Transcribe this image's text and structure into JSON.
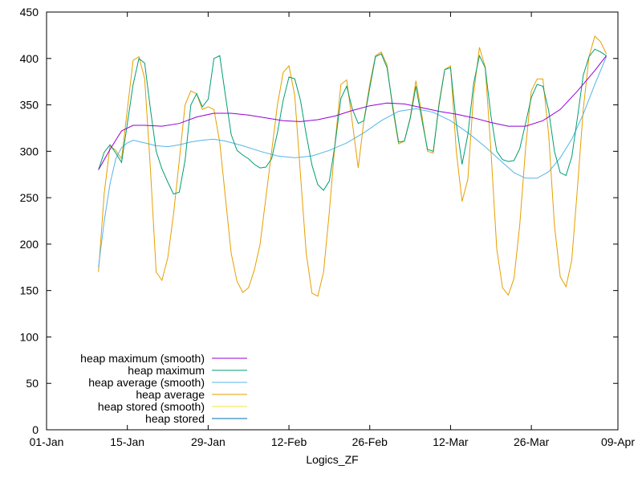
{
  "chart_data": {
    "type": "line",
    "xlabel": "Logics_ZF",
    "ylabel": "",
    "xlim": [
      "2024-01-01",
      "2024-04-09"
    ],
    "ylim": [
      0,
      450
    ],
    "x_ticks": [
      "01-Jan",
      "15-Jan",
      "29-Jan",
      "12-Feb",
      "26-Feb",
      "12-Mar",
      "26-Mar",
      "09-Apr"
    ],
    "y_ticks": [
      0,
      50,
      100,
      150,
      200,
      250,
      300,
      350,
      400,
      450
    ],
    "grid": false,
    "legend_position": "bottom-left",
    "series": [
      {
        "name": "heap maximum (smooth)",
        "color": "#9400d3",
        "points": [
          [
            "2024-01-10",
            280
          ],
          [
            "2024-01-12",
            302
          ],
          [
            "2024-01-14",
            322
          ],
          [
            "2024-01-16",
            328
          ],
          [
            "2024-01-18",
            328
          ],
          [
            "2024-01-21",
            327
          ],
          [
            "2024-01-24",
            330
          ],
          [
            "2024-01-27",
            337
          ],
          [
            "2024-01-30",
            341
          ],
          [
            "2024-02-02",
            341
          ],
          [
            "2024-02-05",
            339
          ],
          [
            "2024-02-08",
            336
          ],
          [
            "2024-02-11",
            333
          ],
          [
            "2024-02-14",
            332
          ],
          [
            "2024-02-17",
            334
          ],
          [
            "2024-02-20",
            338
          ],
          [
            "2024-02-23",
            344
          ],
          [
            "2024-02-26",
            349
          ],
          [
            "2024-02-29",
            352
          ],
          [
            "2024-03-03",
            351
          ],
          [
            "2024-03-06",
            347
          ],
          [
            "2024-03-09",
            343
          ],
          [
            "2024-03-12",
            340
          ],
          [
            "2024-03-15",
            336
          ],
          [
            "2024-03-18",
            331
          ],
          [
            "2024-03-21",
            327
          ],
          [
            "2024-03-24",
            327
          ],
          [
            "2024-03-27",
            333
          ],
          [
            "2024-03-30",
            345
          ],
          [
            "2024-04-02",
            365
          ],
          [
            "2024-04-05",
            387
          ],
          [
            "2024-04-07",
            403
          ]
        ]
      },
      {
        "name": "heap maximum",
        "color": "#009e73",
        "points": [
          [
            "2024-01-10",
            280
          ],
          [
            "2024-01-11",
            299
          ],
          [
            "2024-01-12",
            307
          ],
          [
            "2024-01-13",
            298
          ],
          [
            "2024-01-14",
            288
          ],
          [
            "2024-01-15",
            330
          ],
          [
            "2024-01-16",
            372
          ],
          [
            "2024-01-17",
            400
          ],
          [
            "2024-01-18",
            395
          ],
          [
            "2024-01-19",
            345
          ],
          [
            "2024-01-20",
            300
          ],
          [
            "2024-01-21",
            281
          ],
          [
            "2024-01-22",
            267
          ],
          [
            "2024-01-23",
            254
          ],
          [
            "2024-01-24",
            256
          ],
          [
            "2024-01-25",
            290
          ],
          [
            "2024-01-26",
            350
          ],
          [
            "2024-01-27",
            362
          ],
          [
            "2024-01-28",
            348
          ],
          [
            "2024-01-29",
            356
          ],
          [
            "2024-01-30",
            400
          ],
          [
            "2024-01-31",
            403
          ],
          [
            "2024-02-01",
            360
          ],
          [
            "2024-02-02",
            318
          ],
          [
            "2024-02-03",
            301
          ],
          [
            "2024-02-04",
            296
          ],
          [
            "2024-02-05",
            292
          ],
          [
            "2024-02-06",
            286
          ],
          [
            "2024-02-07",
            282
          ],
          [
            "2024-02-08",
            283
          ],
          [
            "2024-02-09",
            292
          ],
          [
            "2024-02-10",
            320
          ],
          [
            "2024-02-11",
            355
          ],
          [
            "2024-02-12",
            380
          ],
          [
            "2024-02-13",
            378
          ],
          [
            "2024-02-14",
            355
          ],
          [
            "2024-02-15",
            318
          ],
          [
            "2024-02-16",
            285
          ],
          [
            "2024-02-17",
            264
          ],
          [
            "2024-02-18",
            258
          ],
          [
            "2024-02-19",
            268
          ],
          [
            "2024-02-20",
            308
          ],
          [
            "2024-02-21",
            357
          ],
          [
            "2024-02-22",
            370
          ],
          [
            "2024-02-23",
            345
          ],
          [
            "2024-02-24",
            330
          ],
          [
            "2024-02-25",
            333
          ],
          [
            "2024-02-26",
            368
          ],
          [
            "2024-02-27",
            402
          ],
          [
            "2024-02-28",
            405
          ],
          [
            "2024-02-29",
            390
          ],
          [
            "2024-03-01",
            348
          ],
          [
            "2024-03-02",
            310
          ],
          [
            "2024-03-03",
            311
          ],
          [
            "2024-03-04",
            335
          ],
          [
            "2024-03-05",
            370
          ],
          [
            "2024-03-06",
            335
          ],
          [
            "2024-03-07",
            302
          ],
          [
            "2024-03-08",
            300
          ],
          [
            "2024-03-09",
            350
          ],
          [
            "2024-03-10",
            388
          ],
          [
            "2024-03-11",
            390
          ],
          [
            "2024-03-12",
            330
          ],
          [
            "2024-03-13",
            286
          ],
          [
            "2024-03-14",
            318
          ],
          [
            "2024-03-15",
            373
          ],
          [
            "2024-03-16",
            403
          ],
          [
            "2024-03-17",
            390
          ],
          [
            "2024-03-18",
            338
          ],
          [
            "2024-03-19",
            300
          ],
          [
            "2024-03-20",
            291
          ],
          [
            "2024-03-21",
            289
          ],
          [
            "2024-03-22",
            290
          ],
          [
            "2024-03-23",
            303
          ],
          [
            "2024-03-24",
            330
          ],
          [
            "2024-03-25",
            358
          ],
          [
            "2024-03-26",
            372
          ],
          [
            "2024-03-27",
            370
          ],
          [
            "2024-03-28",
            344
          ],
          [
            "2024-03-29",
            300
          ],
          [
            "2024-03-30",
            277
          ],
          [
            "2024-03-31",
            274
          ],
          [
            "2024-04-01",
            294
          ],
          [
            "2024-04-02",
            337
          ],
          [
            "2024-04-03",
            382
          ],
          [
            "2024-04-04",
            402
          ],
          [
            "2024-04-05",
            410
          ],
          [
            "2024-04-06",
            407
          ],
          [
            "2024-04-07",
            403
          ]
        ]
      },
      {
        "name": "heap average (smooth)",
        "color": "#56b4e9",
        "points": [
          [
            "2024-01-10",
            175
          ],
          [
            "2024-01-11",
            225
          ],
          [
            "2024-01-12",
            265
          ],
          [
            "2024-01-13",
            292
          ],
          [
            "2024-01-14",
            304
          ],
          [
            "2024-01-15",
            309
          ],
          [
            "2024-01-16",
            312
          ],
          [
            "2024-01-18",
            309
          ],
          [
            "2024-01-20",
            306
          ],
          [
            "2024-01-22",
            305
          ],
          [
            "2024-01-24",
            307
          ],
          [
            "2024-01-26",
            310
          ],
          [
            "2024-01-28",
            312
          ],
          [
            "2024-01-30",
            313
          ],
          [
            "2024-02-01",
            311
          ],
          [
            "2024-02-04",
            306
          ],
          [
            "2024-02-07",
            300
          ],
          [
            "2024-02-10",
            295
          ],
          [
            "2024-02-13",
            293
          ],
          [
            "2024-02-16",
            295
          ],
          [
            "2024-02-19",
            301
          ],
          [
            "2024-02-22",
            309
          ],
          [
            "2024-02-25",
            320
          ],
          [
            "2024-02-28",
            333
          ],
          [
            "2024-03-02",
            343
          ],
          [
            "2024-03-05",
            346
          ],
          [
            "2024-03-08",
            342
          ],
          [
            "2024-03-11",
            333
          ],
          [
            "2024-03-14",
            320
          ],
          [
            "2024-03-17",
            305
          ],
          [
            "2024-03-20",
            288
          ],
          [
            "2024-03-22",
            277
          ],
          [
            "2024-03-24",
            271
          ],
          [
            "2024-03-26",
            271
          ],
          [
            "2024-03-28",
            278
          ],
          [
            "2024-03-30",
            293
          ],
          [
            "2024-04-01",
            313
          ],
          [
            "2024-04-03",
            340
          ],
          [
            "2024-04-05",
            372
          ],
          [
            "2024-04-07",
            402
          ]
        ]
      },
      {
        "name": "heap average",
        "color": "#e69f00",
        "points": [
          [
            "2024-01-10",
            170
          ],
          [
            "2024-01-11",
            255
          ],
          [
            "2024-01-12",
            306
          ],
          [
            "2024-01-13",
            301
          ],
          [
            "2024-01-14",
            292
          ],
          [
            "2024-01-15",
            345
          ],
          [
            "2024-01-16",
            398
          ],
          [
            "2024-01-17",
            402
          ],
          [
            "2024-01-18",
            378
          ],
          [
            "2024-01-19",
            280
          ],
          [
            "2024-01-20",
            170
          ],
          [
            "2024-01-21",
            161
          ],
          [
            "2024-01-22",
            185
          ],
          [
            "2024-01-23",
            232
          ],
          [
            "2024-01-24",
            290
          ],
          [
            "2024-01-25",
            350
          ],
          [
            "2024-01-26",
            365
          ],
          [
            "2024-01-27",
            362
          ],
          [
            "2024-01-28",
            345
          ],
          [
            "2024-01-29",
            348
          ],
          [
            "2024-01-30",
            345
          ],
          [
            "2024-01-31",
            310
          ],
          [
            "2024-02-01",
            250
          ],
          [
            "2024-02-02",
            190
          ],
          [
            "2024-02-03",
            160
          ],
          [
            "2024-02-04",
            148
          ],
          [
            "2024-02-05",
            153
          ],
          [
            "2024-02-06",
            172
          ],
          [
            "2024-02-07",
            200
          ],
          [
            "2024-02-08",
            250
          ],
          [
            "2024-02-09",
            300
          ],
          [
            "2024-02-10",
            350
          ],
          [
            "2024-02-11",
            385
          ],
          [
            "2024-02-12",
            392
          ],
          [
            "2024-02-13",
            360
          ],
          [
            "2024-02-14",
            275
          ],
          [
            "2024-02-15",
            190
          ],
          [
            "2024-02-16",
            147
          ],
          [
            "2024-02-17",
            144
          ],
          [
            "2024-02-18",
            170
          ],
          [
            "2024-02-19",
            235
          ],
          [
            "2024-02-20",
            310
          ],
          [
            "2024-02-21",
            372
          ],
          [
            "2024-02-22",
            377
          ],
          [
            "2024-02-23",
            330
          ],
          [
            "2024-02-24",
            282
          ],
          [
            "2024-02-25",
            334
          ],
          [
            "2024-02-26",
            372
          ],
          [
            "2024-02-27",
            403
          ],
          [
            "2024-02-28",
            407
          ],
          [
            "2024-02-29",
            393
          ],
          [
            "2024-03-01",
            345
          ],
          [
            "2024-03-02",
            308
          ],
          [
            "2024-03-03",
            311
          ],
          [
            "2024-03-04",
            336
          ],
          [
            "2024-03-05",
            376
          ],
          [
            "2024-03-06",
            340
          ],
          [
            "2024-03-07",
            300
          ],
          [
            "2024-03-08",
            298
          ],
          [
            "2024-03-09",
            352
          ],
          [
            "2024-03-10",
            388
          ],
          [
            "2024-03-11",
            392
          ],
          [
            "2024-03-12",
            300
          ],
          [
            "2024-03-13",
            246
          ],
          [
            "2024-03-14",
            270
          ],
          [
            "2024-03-15",
            362
          ],
          [
            "2024-03-16",
            412
          ],
          [
            "2024-03-17",
            391
          ],
          [
            "2024-03-18",
            300
          ],
          [
            "2024-03-19",
            195
          ],
          [
            "2024-03-20",
            153
          ],
          [
            "2024-03-21",
            145
          ],
          [
            "2024-03-22",
            163
          ],
          [
            "2024-03-23",
            221
          ],
          [
            "2024-03-24",
            303
          ],
          [
            "2024-03-25",
            365
          ],
          [
            "2024-03-26",
            378
          ],
          [
            "2024-03-27",
            378
          ],
          [
            "2024-03-28",
            318
          ],
          [
            "2024-03-29",
            220
          ],
          [
            "2024-03-30",
            165
          ],
          [
            "2024-03-31",
            154
          ],
          [
            "2024-04-01",
            183
          ],
          [
            "2024-04-02",
            262
          ],
          [
            "2024-04-03",
            345
          ],
          [
            "2024-04-04",
            402
          ],
          [
            "2024-04-05",
            424
          ],
          [
            "2024-04-06",
            418
          ],
          [
            "2024-04-07",
            405
          ]
        ]
      },
      {
        "name": "heap stored (smooth)",
        "color": "#f0e442",
        "points": []
      },
      {
        "name": "heap stored",
        "color": "#0072b2",
        "points": []
      }
    ]
  }
}
